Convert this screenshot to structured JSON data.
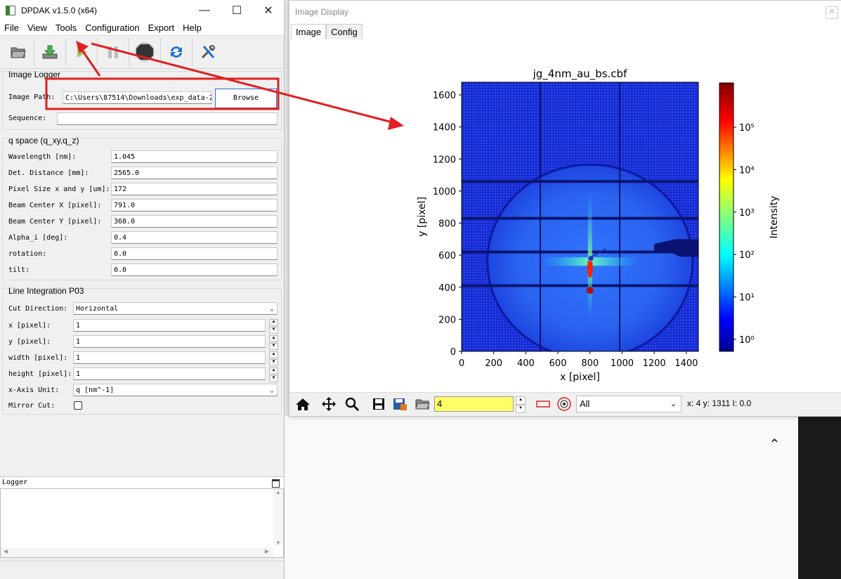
{
  "main_window": {
    "title": "DPDAK v1.5.0 (x64)",
    "menu": [
      "File",
      "View",
      "Tools",
      "Configuration",
      "Export",
      "Help"
    ],
    "toolbar_icons": [
      "open-folder-icon",
      "download-icon",
      "run-icon",
      "pause-icon",
      "stop-icon",
      "refresh-icon",
      "tools-icon"
    ],
    "image_logger": {
      "title": "Image Logger",
      "path_label": "Image Path:",
      "path_value": "C:\\Users\\87514\\Downloads\\exp_data-2",
      "browse_label": "Browse",
      "sequence_label": "Sequence:",
      "sequence_value": ""
    },
    "q_space": {
      "title": "q space (q_xy,q_z)",
      "params": [
        {
          "label": "Wavelength [nm]:",
          "value": "1.045"
        },
        {
          "label": "Det. Distance [mm]:",
          "value": "2565.0"
        },
        {
          "label": "Pixel Size x and y [um]:",
          "value": "172"
        },
        {
          "label": "Beam Center X [pixel]:",
          "value": "791.0"
        },
        {
          "label": "Beam Center Y [pixel]:",
          "value": "368.0"
        },
        {
          "label": "Alpha_i [deg]:",
          "value": "0.4"
        },
        {
          "label": "rotation:",
          "value": "0.0"
        },
        {
          "label": "tilt:",
          "value": "0.0"
        }
      ]
    },
    "line_integration": {
      "title": "Line Integration P03",
      "cut_direction_label": "Cut Direction:",
      "cut_direction_value": "Horizontal",
      "fields": [
        {
          "label": "x [pixel]:",
          "value": "1"
        },
        {
          "label": "y [pixel]:",
          "value": "1"
        },
        {
          "label": "width [pixel]:",
          "value": "1"
        },
        {
          "label": "height [pixel]:",
          "value": "1"
        }
      ],
      "xaxis_label": "x-Axis Unit:",
      "xaxis_value": "q [nm^-1]",
      "mirror_label": "Mirror Cut:",
      "mirror_checked": false
    },
    "logger": {
      "title": "Logger"
    }
  },
  "image_window": {
    "title": "Image Display",
    "tabs": [
      "Image",
      "Config"
    ],
    "active_tab": "Image",
    "frame_value": "4",
    "filter_value": "All",
    "status": "x: 4 y: 1311 I: 0.0"
  },
  "chart_data": {
    "type": "heatmap",
    "title": "jg_4nm_au_bs.cbf",
    "xlabel": "x [pixel]",
    "ylabel": "y [pixel]",
    "xlim": [
      0,
      1475
    ],
    "ylim": [
      0,
      1679
    ],
    "xticks": [
      "0",
      "200",
      "400",
      "600",
      "800",
      "1000",
      "1200",
      "1400"
    ],
    "yticks": [
      "0",
      "200",
      "400",
      "600",
      "800",
      "1000",
      "1200",
      "1400",
      "1600"
    ],
    "colorbar": {
      "label": "Intensity",
      "scale": "log",
      "colormap": "jet",
      "ticks": [
        "10⁰",
        "10¹",
        "10²",
        "10³",
        "10⁴",
        "10⁵"
      ]
    }
  },
  "colors": {
    "annotation": "#e02020",
    "highlight_field": "#ffff66"
  }
}
